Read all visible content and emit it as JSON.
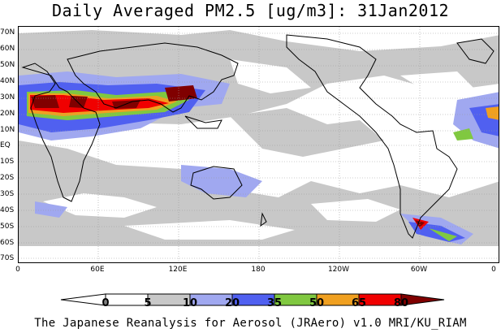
{
  "title": "Daily Averaged PM2.5 [ug/m3]: 31Jan2012",
  "footer": "The Japanese Reanalysis for Aerosol (JRAero) v1.0 MRI/KU_RIAM",
  "lat_labels": [
    "70N",
    "60N",
    "50N",
    "40N",
    "30N",
    "20N",
    "10N",
    "EQ",
    "10S",
    "20S",
    "30S",
    "40S",
    "50S",
    "60S",
    "70S"
  ],
  "lon_labels": [
    "0",
    "60E",
    "120E",
    "180",
    "120W",
    "60W",
    "0"
  ],
  "colorbar": {
    "levels": [
      "0",
      "5",
      "10",
      "20",
      "35",
      "50",
      "65",
      "80"
    ],
    "colors": [
      "#ffffff",
      "#c8c8c8",
      "#a0a8f0",
      "#5060f0",
      "#80c840",
      "#f0a020",
      "#f00000",
      "#800000"
    ]
  }
}
